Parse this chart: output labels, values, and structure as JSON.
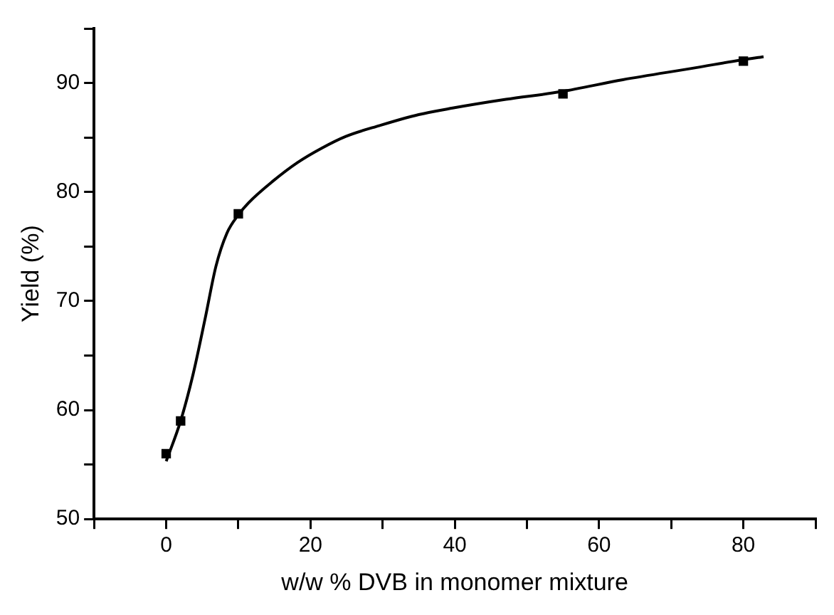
{
  "chart_data": {
    "type": "scatter",
    "xlabel": "w/w % DVB in monomer mixture",
    "ylabel": "Yield (%)",
    "xlim": [
      -10,
      90
    ],
    "ylim": [
      50,
      95
    ],
    "xticks": [
      {
        "value": -10,
        "label": null
      },
      0,
      {
        "value": 10,
        "label": null
      },
      20,
      {
        "value": 30,
        "label": null
      },
      40,
      {
        "value": 50,
        "label": null
      },
      60,
      {
        "value": 70,
        "label": null
      },
      80,
      {
        "value": 90,
        "label": null
      }
    ],
    "yticks": [
      50,
      {
        "value": 55,
        "label": null
      },
      60,
      {
        "value": 65,
        "label": null
      },
      70,
      {
        "value": 75,
        "label": null
      },
      80,
      {
        "value": 85,
        "label": null
      },
      90,
      {
        "value": 95,
        "label": null
      }
    ],
    "grid": false,
    "legend": false,
    "series": [
      {
        "color": "#000000",
        "marker": "square",
        "x": [
          0,
          2,
          10,
          55,
          80
        ],
        "values": [
          56,
          59,
          78,
          89,
          92
        ]
      },
      {
        "type": "line",
        "color": "#000000",
        "marker": "none",
        "line_style": "solid",
        "x": [
          0,
          2,
          3.7,
          5.4,
          6.9,
          8.4,
          10,
          11.4,
          14.8,
          18.2,
          21.5,
          24.9,
          29.6,
          35,
          39.7,
          47.1,
          54.7,
          63.3,
          73.4,
          79.6,
          82.8
        ],
        "values": [
          55.3,
          59,
          63.2,
          68.4,
          73.2,
          76.2,
          77.9,
          79,
          81,
          82.7,
          84,
          85.1,
          86.1,
          87.1,
          87.7,
          88.5,
          89.2,
          90.3,
          91.4,
          92.1,
          92.4
        ]
      }
    ]
  }
}
